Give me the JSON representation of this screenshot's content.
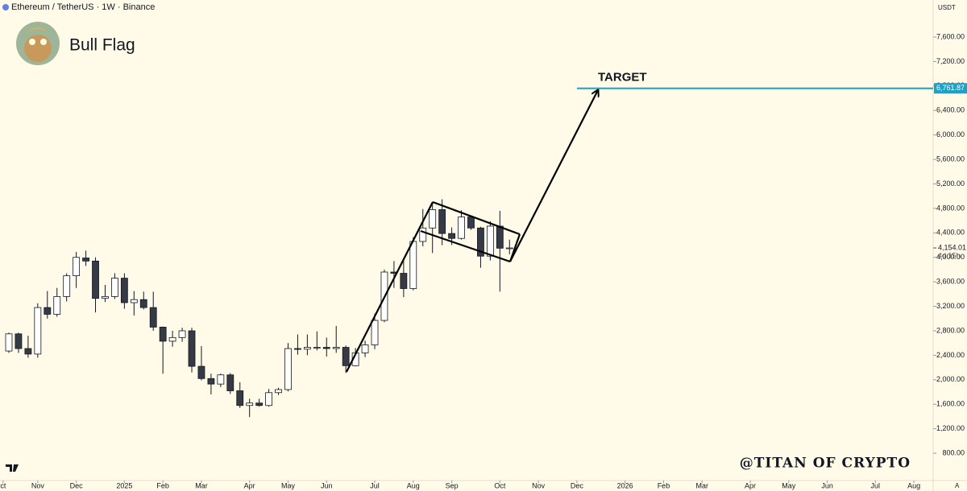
{
  "header": {
    "symbol": "Ethereum / TetherUS · 1W · Binance",
    "title": "Bull Flag",
    "currency": "USDT",
    "watermark": "@TITAN OF CRYPTO",
    "auto": "A"
  },
  "chart_data": {
    "type": "candlestick",
    "x": [
      0,
      1,
      2,
      3,
      4,
      5,
      6,
      7,
      8,
      9,
      10,
      11,
      12,
      13,
      14,
      15,
      16,
      17,
      18,
      19,
      20,
      21,
      22,
      23,
      24,
      25,
      26,
      27,
      28,
      29,
      30,
      31,
      32,
      33,
      34,
      35,
      36,
      37,
      38,
      39,
      40,
      41,
      42,
      43,
      44,
      45,
      46,
      47,
      48,
      49,
      50,
      51,
      52
    ],
    "open": [
      2470,
      2750,
      2510,
      2420,
      3180,
      3070,
      3360,
      3700,
      3990,
      3940,
      3330,
      3360,
      3660,
      3260,
      3310,
      3180,
      2860,
      2630,
      2690,
      2800,
      2220,
      2020,
      1930,
      2080,
      1820,
      1580,
      1620,
      1580,
      1790,
      1840,
      2510,
      2500,
      2530,
      2530,
      2510,
      2530,
      2230,
      2440,
      2570,
      2970,
      3760,
      3740,
      3490,
      4260,
      4480,
      4780,
      4390,
      4310,
      4660,
      4480,
      4020,
      4510,
      4150
    ],
    "high": [
      2770,
      2770,
      2720,
      3250,
      3450,
      3500,
      3740,
      4090,
      4110,
      4000,
      3550,
      3740,
      3740,
      3450,
      3440,
      3440,
      2870,
      2800,
      2850,
      2850,
      2550,
      2100,
      2100,
      2110,
      1960,
      1690,
      1690,
      1850,
      1870,
      2600,
      2740,
      2740,
      2790,
      2690,
      2880,
      2560,
      2520,
      2640,
      3080,
      3800,
      3940,
      3940,
      4330,
      4790,
      4890,
      4950,
      4490,
      4770,
      4670,
      4500,
      4590,
      4760,
      4290
    ],
    "low": [
      2440,
      2440,
      2360,
      2360,
      3000,
      3030,
      3280,
      3500,
      3860,
      3100,
      3270,
      3320,
      3160,
      3050,
      3150,
      2800,
      2100,
      2540,
      2620,
      2120,
      1990,
      1760,
      1880,
      1770,
      1540,
      1390,
      1560,
      1560,
      1750,
      1810,
      2410,
      2400,
      2480,
      2380,
      2440,
      2110,
      2220,
      2370,
      2500,
      2940,
      3500,
      3350,
      3460,
      4180,
      4070,
      4200,
      4200,
      4290,
      4450,
      3830,
      3950,
      3440,
      4050
    ],
    "close": [
      2750,
      2510,
      2420,
      3180,
      3070,
      3360,
      3700,
      4000,
      3940,
      3330,
      3360,
      3660,
      3260,
      3310,
      3180,
      2860,
      2630,
      2690,
      2800,
      2220,
      2020,
      1930,
      2080,
      1820,
      1580,
      1620,
      1580,
      1790,
      1840,
      2510,
      2500,
      2530,
      2530,
      2510,
      2530,
      2230,
      2440,
      2570,
      2970,
      3760,
      3740,
      3490,
      4260,
      4480,
      4780,
      4390,
      4310,
      4660,
      4480,
      4020,
      4510,
      4150,
      4154
    ],
    "up_color": "#ffffff",
    "down_color": "#363a45",
    "edge_color": "#131722",
    "xlim": [
      -0.92,
      96
    ],
    "xticks": [
      {
        "value": -0.6,
        "label": "ct"
      },
      {
        "value": 3,
        "label": "Nov"
      },
      {
        "value": 7,
        "label": "Dec"
      },
      {
        "value": 12,
        "label": "2025"
      },
      {
        "value": 16,
        "label": "Feb"
      },
      {
        "value": 20,
        "label": "Mar"
      },
      {
        "value": 25,
        "label": "Apr"
      },
      {
        "value": 29,
        "label": "May"
      },
      {
        "value": 33,
        "label": "Jun"
      },
      {
        "value": 38,
        "label": "Jul"
      },
      {
        "value": 42,
        "label": "Aug"
      },
      {
        "value": 46,
        "label": "Sep"
      },
      {
        "value": 51,
        "label": "Oct"
      },
      {
        "value": 55,
        "label": "Nov"
      },
      {
        "value": 59,
        "label": "Dec"
      },
      {
        "value": 64,
        "label": "2026"
      },
      {
        "value": 68,
        "label": "Feb"
      },
      {
        "value": 72,
        "label": "Mar"
      },
      {
        "value": 77,
        "label": "Apr"
      },
      {
        "value": 81,
        "label": "May"
      },
      {
        "value": 85,
        "label": "Jun"
      },
      {
        "value": 90,
        "label": "Jul"
      },
      {
        "value": 94,
        "label": "Aug"
      }
    ],
    "ylim": [
      380,
      8205
    ],
    "yticks": [
      {
        "value": 800,
        "label": "800.00"
      },
      {
        "value": 1200,
        "label": "1,200.00"
      },
      {
        "value": 1600,
        "label": "1,600.00"
      },
      {
        "value": 2000,
        "label": "2,000.00"
      },
      {
        "value": 2400,
        "label": "2,400.00"
      },
      {
        "value": 2800,
        "label": "2,800.00"
      },
      {
        "value": 3200,
        "label": "3,200.00"
      },
      {
        "value": 3600,
        "label": "3,600.00"
      },
      {
        "value": 4000,
        "label": "4,000.00"
      },
      {
        "value": 4400,
        "label": "4,400.00"
      },
      {
        "value": 4800,
        "label": "4,800.00"
      },
      {
        "value": 5200,
        "label": "5,200.00"
      },
      {
        "value": 5600,
        "label": "5,600.00"
      },
      {
        "value": 6000,
        "label": "6,000.00"
      },
      {
        "value": 6400,
        "label": "6,400.00"
      },
      {
        "value": 6800,
        "label": "6,800.00"
      },
      {
        "value": 7200,
        "label": "7,200.00"
      },
      {
        "value": 7600,
        "label": "7,600.00"
      }
    ],
    "last_price": {
      "value": 4154.01,
      "label": "4,154.01"
    },
    "countdown": "4d 15h",
    "target": {
      "value": 6761.87,
      "label": "6,761.87",
      "text": "TARGET",
      "color": "#1aa3c8"
    }
  }
}
